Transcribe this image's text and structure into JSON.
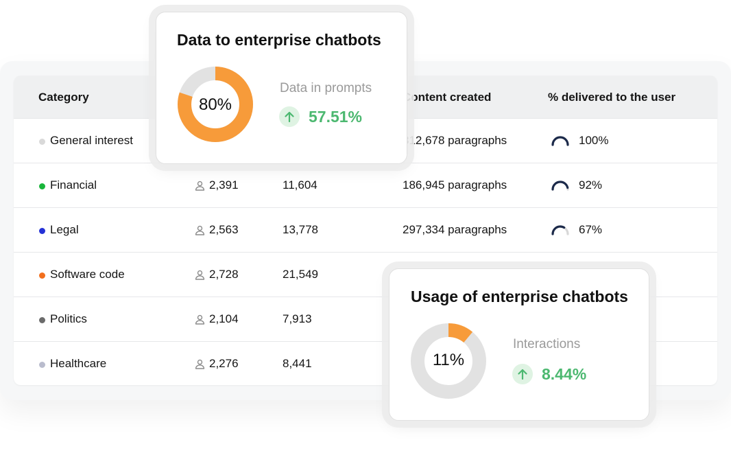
{
  "table": {
    "headers": {
      "category": "Category",
      "content": "Content created",
      "delivered": "% delivered to the user"
    },
    "rows": [
      {
        "category": "General interest",
        "dot_color": "#d9d9d9",
        "users": "",
        "prompts": "",
        "content": "812,678 paragraphs",
        "delivered": "100%",
        "delivered_fraction": 1.0
      },
      {
        "category": "Financial",
        "dot_color": "#19b53a",
        "users": "2,391",
        "prompts": "11,604",
        "content": "186,945 paragraphs",
        "delivered": "92%",
        "delivered_fraction": 0.92
      },
      {
        "category": "Legal",
        "dot_color": "#2431d6",
        "users": "2,563",
        "prompts": "13,778",
        "content": "297,334 paragraphs",
        "delivered": "67%",
        "delivered_fraction": 0.67
      },
      {
        "category": "Software code",
        "dot_color": "#f26f1d",
        "users": "2,728",
        "prompts": "21,549",
        "content": "",
        "delivered": "",
        "delivered_fraction": null
      },
      {
        "category": "Politics",
        "dot_color": "#6b6b6b",
        "users": "2,104",
        "prompts": "7,913",
        "content": "",
        "delivered": "",
        "delivered_fraction": null
      },
      {
        "category": "Healthcare",
        "dot_color": "#b9bccd",
        "users": "2,276",
        "prompts": "8,441",
        "content": "",
        "delivered": "",
        "delivered_fraction": null
      }
    ]
  },
  "card_data": {
    "title": "Data to enterprise chatbots",
    "donut_value": "80%",
    "donut_fraction": 0.8,
    "metric_label": "Data in prompts",
    "metric_value": "57.51%"
  },
  "card_usage": {
    "title": "Usage of enterprise chatbots",
    "donut_value": "11%",
    "donut_fraction": 0.11,
    "metric_label": "Interactions",
    "metric_value": "8.44%"
  },
  "colors": {
    "accent_orange": "#f79b3a",
    "donut_track": "#e2e2e2",
    "positive_green": "#4cb870",
    "gauge_navy": "#1c2a4a"
  }
}
